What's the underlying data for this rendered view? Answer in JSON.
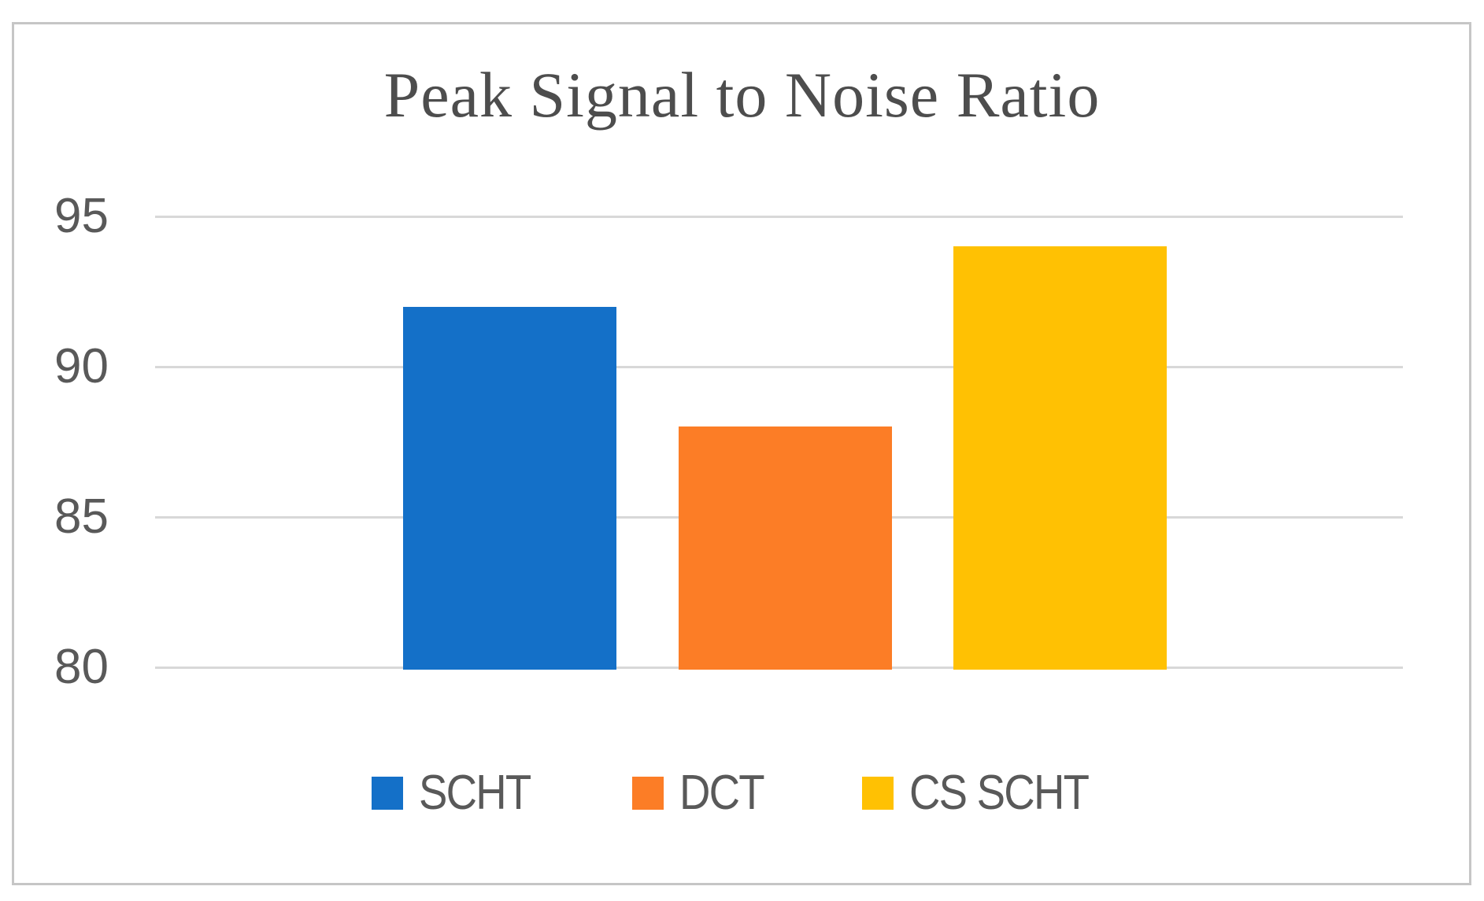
{
  "chart_data": {
    "type": "bar",
    "title": "Peak Signal to Noise Ratio",
    "categories": [
      "SCHT",
      "DCT",
      "CS SCHT"
    ],
    "values": [
      92,
      88,
      94
    ],
    "bar_colors": [
      "#1470c8",
      "#fc7d26",
      "#ffc103"
    ],
    "xlabel": "",
    "ylabel": "",
    "yticks": [
      80,
      85,
      90,
      95
    ],
    "ylim": [
      80,
      96.5
    ],
    "grid": true,
    "legend_position": "bottom",
    "legend_entries": [
      "SCHT",
      "DCT",
      "CS SCHT"
    ]
  },
  "style_colors": {
    "gridline": "#d8d8d8",
    "frame_border": "#c6c6c6",
    "axis_text": "#595959",
    "title_text": "#4d4d4d"
  }
}
